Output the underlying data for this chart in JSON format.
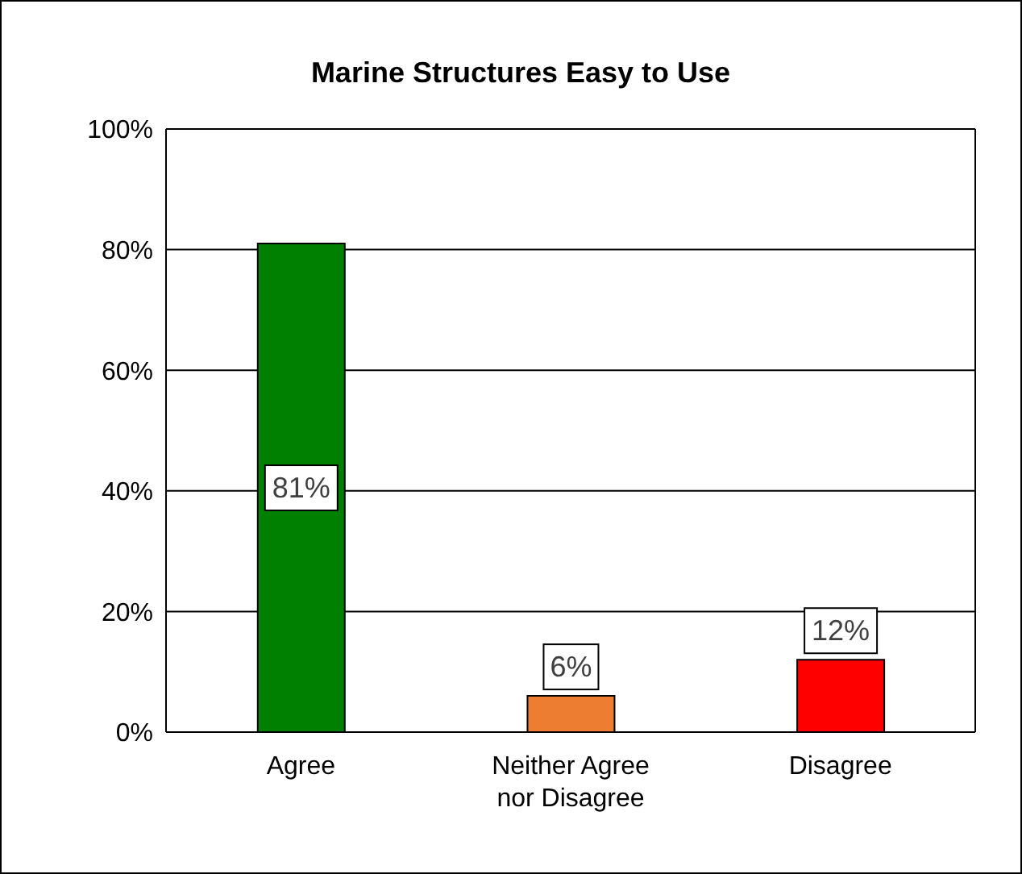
{
  "chart_data": {
    "type": "bar",
    "title": "Marine Structures Easy to Use",
    "categories": [
      "Agree",
      "Neither Agree nor Disagree",
      "Disagree"
    ],
    "values": [
      81,
      6,
      12
    ],
    "colors": [
      "#008000",
      "#ed7d31",
      "#ff0000"
    ],
    "value_labels": [
      "81%",
      "6%",
      "12%"
    ],
    "ylim": [
      0,
      100
    ],
    "yticks": [
      {
        "value": 0,
        "label": "0%"
      },
      {
        "value": 20,
        "label": "20%"
      },
      {
        "value": 40,
        "label": "40%"
      },
      {
        "value": 60,
        "label": "60%"
      },
      {
        "value": 80,
        "label": "80%"
      },
      {
        "value": 100,
        "label": "100%"
      }
    ],
    "grid": "y"
  }
}
